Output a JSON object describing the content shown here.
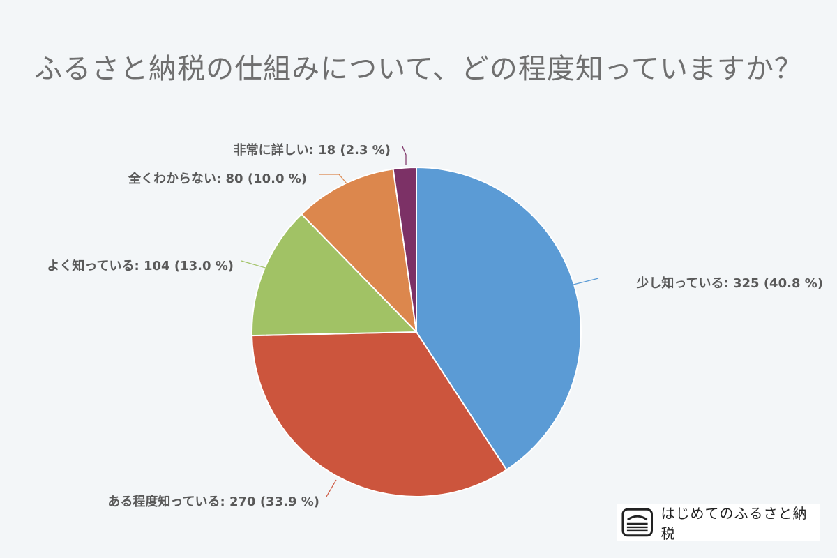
{
  "colors": {
    "background": "#f3f6f8",
    "title": "#6f6f6f",
    "label": "#595959"
  },
  "chart_data": {
    "type": "pie",
    "title": "ふるさと納税の仕組みについて、どの程度知っていますか？",
    "start": "12 o'clock, clockwise",
    "slices": [
      {
        "name": "少し知っている",
        "value": 325,
        "percent": 40.8,
        "color": "#5b9bd5",
        "label": "少し知っている: 325 (40.8 %)"
      },
      {
        "name": "ある程度知っている",
        "value": 270,
        "percent": 33.9,
        "color": "#cc553d",
        "label": "ある程度知っている: 270 (33.9 %)"
      },
      {
        "name": "よく知っている",
        "value": 104,
        "percent": 13.0,
        "color": "#a1c265",
        "label": "よく知っている: 104 (13.0 %)"
      },
      {
        "name": "全くわからない",
        "value": 80,
        "percent": 10.0,
        "color": "#dc874d",
        "label": "全くわからない: 80 (10.0 %)"
      },
      {
        "name": "非常に詳しい",
        "value": 18,
        "percent": 2.3,
        "color": "#7c3166",
        "label": "非常に詳しい: 18 (2.3 %)"
      }
    ]
  },
  "brand": {
    "name": "はじめてのふるさと納税",
    "logo_icon": "furusato-logo-icon"
  }
}
